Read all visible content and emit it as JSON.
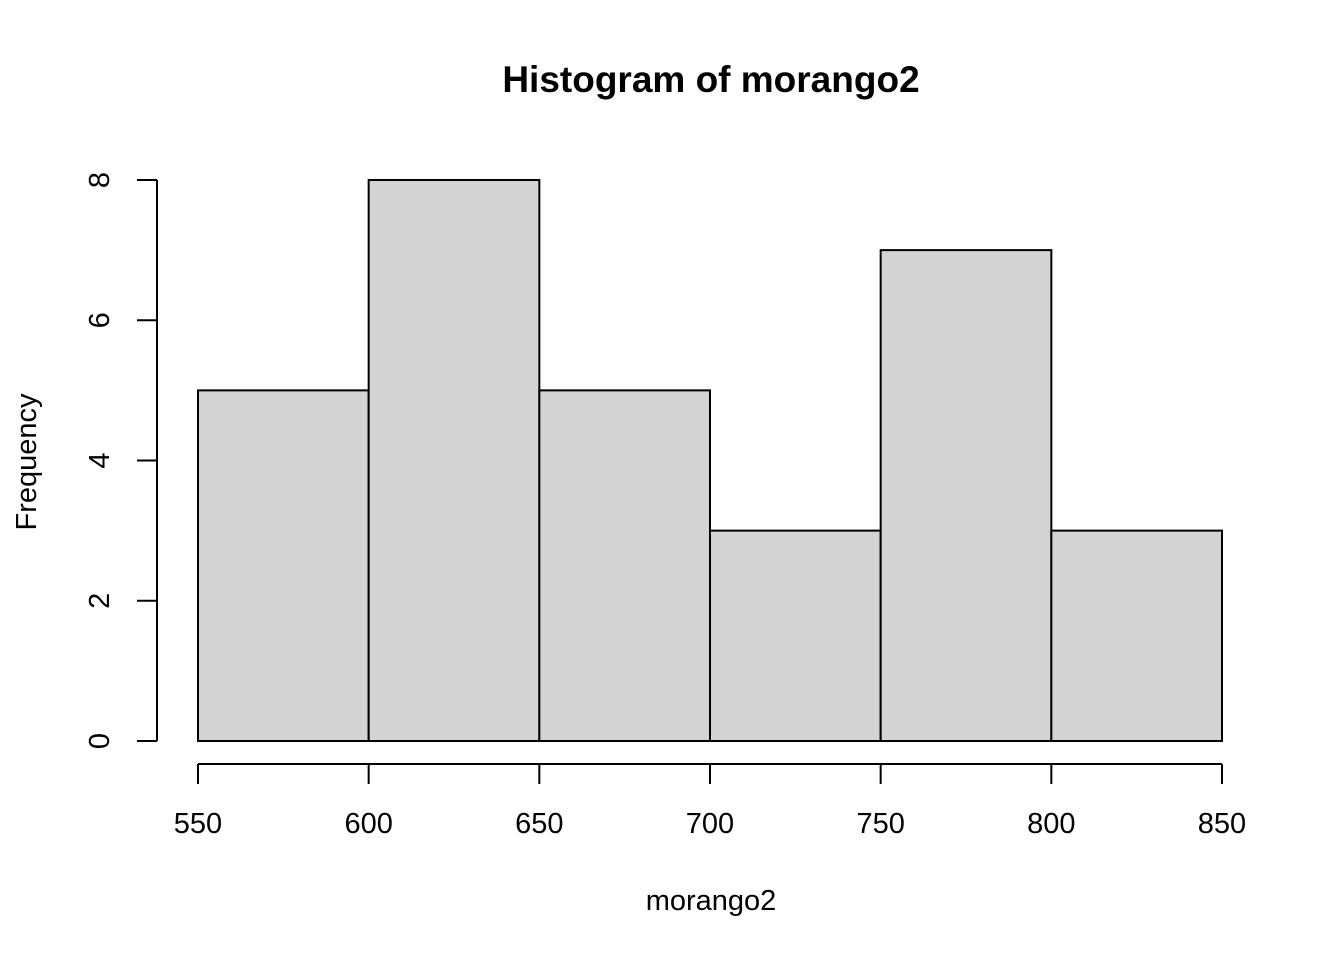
{
  "chart_data": {
    "type": "bar",
    "title": "Histogram of morango2",
    "xlabel": "morango2",
    "ylabel": "Frequency",
    "bins": [
      {
        "from": 550,
        "to": 600,
        "count": 5
      },
      {
        "from": 600,
        "to": 650,
        "count": 8
      },
      {
        "from": 650,
        "to": 700,
        "count": 5
      },
      {
        "from": 700,
        "to": 750,
        "count": 3
      },
      {
        "from": 750,
        "to": 800,
        "count": 7
      },
      {
        "from": 800,
        "to": 850,
        "count": 3
      }
    ],
    "xlim": [
      550,
      850
    ],
    "ylim": [
      0,
      8
    ],
    "x_ticks": [
      550,
      600,
      650,
      700,
      750,
      800,
      850
    ],
    "y_ticks": [
      0,
      2,
      4,
      6,
      8
    ],
    "bar_color": "#d3d3d3",
    "edge_color": "#000000",
    "grid": false
  }
}
